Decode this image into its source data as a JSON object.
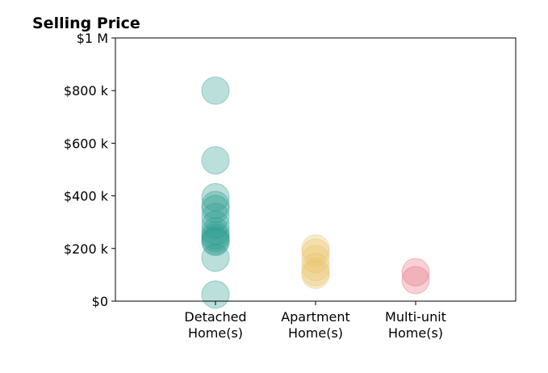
{
  "chart_data": {
    "type": "scatter",
    "title": "Selling Price",
    "xlabel": "",
    "ylabel": "",
    "ylim": [
      0,
      1000000
    ],
    "yticks": [
      {
        "value": 0,
        "label": "$0"
      },
      {
        "value": 200000,
        "label": "$200 k"
      },
      {
        "value": 400000,
        "label": "$400 k"
      },
      {
        "value": 600000,
        "label": "$600 k"
      },
      {
        "value": 800000,
        "label": "$800 k"
      },
      {
        "value": 1000000,
        "label": "$1 M"
      }
    ],
    "categories": [
      {
        "lines": [
          "Detached",
          "Home(s)"
        ]
      },
      {
        "lines": [
          "Apartment",
          "Home(s)"
        ]
      },
      {
        "lines": [
          "Multi-unit",
          "Home(s)"
        ]
      }
    ],
    "grid": false,
    "legend": "none",
    "series": [
      {
        "category_index": 0,
        "color": "#2a9d8f",
        "values": [
          800000,
          535000,
          395000,
          365000,
          350000,
          320000,
          290000,
          265000,
          250000,
          240000,
          230000,
          225000,
          165000,
          25000
        ]
      },
      {
        "category_index": 1,
        "color": "#e9c46a",
        "values": [
          200000,
          185000,
          160000,
          130000,
          110000,
          100000
        ]
      },
      {
        "category_index": 2,
        "color": "#e76f7f",
        "values": [
          110000,
          80000
        ]
      }
    ]
  }
}
